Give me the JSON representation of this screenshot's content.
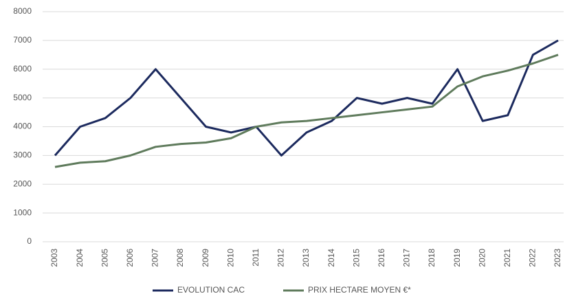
{
  "chart_data": {
    "type": "line",
    "categories": [
      "2003",
      "2004",
      "2005",
      "2006",
      "2007",
      "2008",
      "2009",
      "2010",
      "2011",
      "2012",
      "2013",
      "2014",
      "2015",
      "2016",
      "2017",
      "2018",
      "2019",
      "2020",
      "2021",
      "2022",
      "2023"
    ],
    "series": [
      {
        "name": "EVOLUTION CAC",
        "color": "#1c2a5e",
        "values": [
          3000,
          4000,
          4300,
          5000,
          6000,
          5000,
          4000,
          3800,
          4000,
          3000,
          3800,
          4200,
          5000,
          4800,
          5000,
          4800,
          6000,
          4200,
          4400,
          6500,
          7000
        ]
      },
      {
        "name": "PRIX HECTARE MOYEN €*",
        "color": "#5f7b5c",
        "values": [
          2600,
          2750,
          2800,
          3000,
          3300,
          3400,
          3450,
          3600,
          4000,
          4150,
          4200,
          4300,
          4400,
          4500,
          4600,
          4700,
          5400,
          5750,
          5950,
          6200,
          6500
        ]
      }
    ],
    "ylim": [
      0,
      8000
    ],
    "yticks": [
      0,
      1000,
      2000,
      3000,
      4000,
      5000,
      6000,
      7000,
      8000
    ],
    "grid": true,
    "legend": "bottom"
  }
}
